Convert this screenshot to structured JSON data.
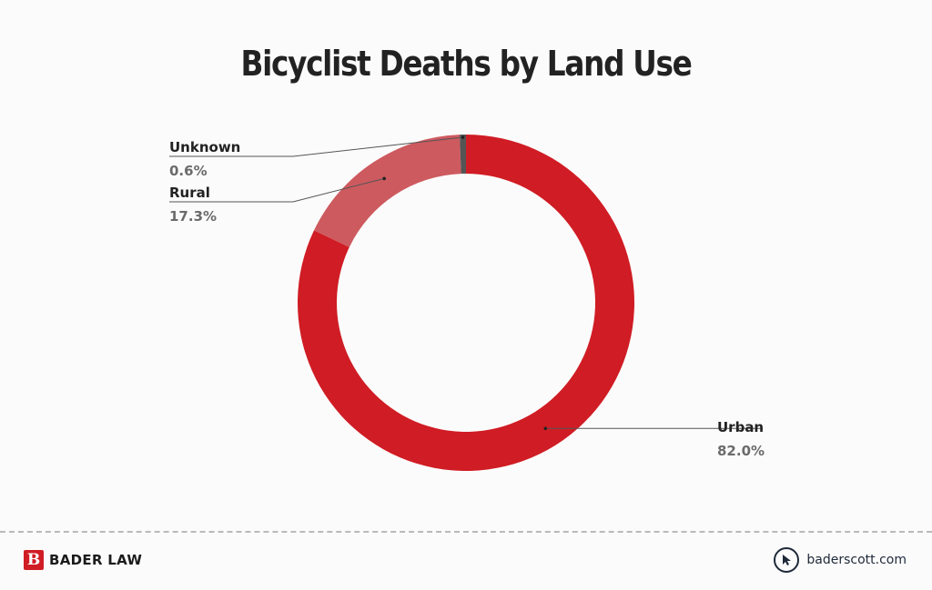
{
  "chart_data": {
    "type": "pie",
    "title": "Bicyclist Deaths by Land Use",
    "donut": true,
    "slices": [
      {
        "label": "Urban",
        "value": 82.0,
        "display": "82.0%",
        "color": "#d01c24"
      },
      {
        "label": "Rural",
        "value": 17.3,
        "display": "17.3%",
        "color": "#cd5a5f"
      },
      {
        "label": "Unknown",
        "value": 0.6,
        "display": "0.6%",
        "color": "#555555"
      }
    ]
  },
  "footer": {
    "brand": "BADER LAW",
    "brand_mark": "B",
    "website": "baderscott.com"
  },
  "icons": {
    "brand": "bader-law-logo-icon",
    "link": "cursor-pointer-icon"
  }
}
